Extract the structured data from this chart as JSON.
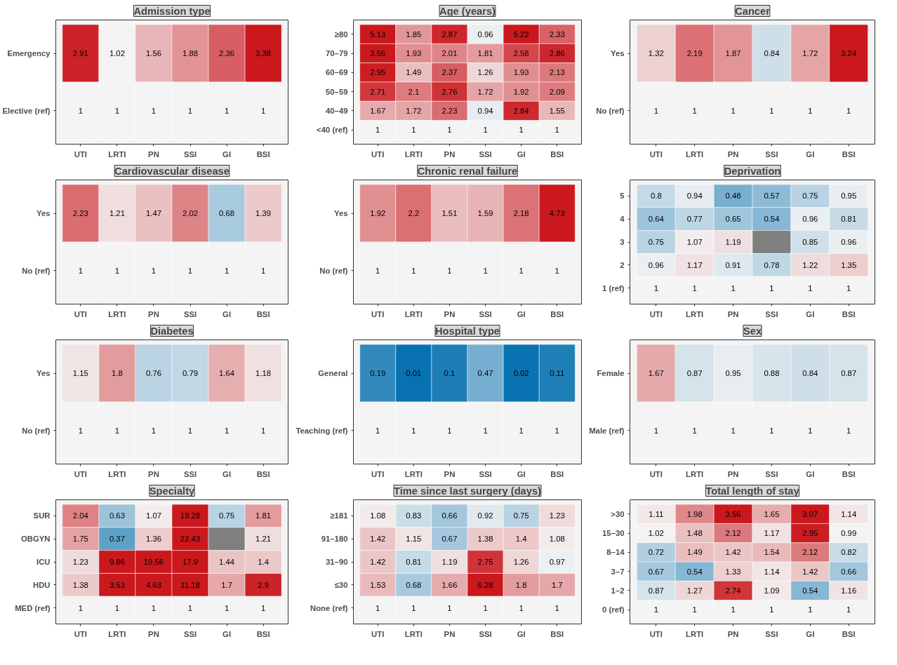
{
  "chart_data": [
    {
      "type": "heatmap",
      "title": "Admission type",
      "categories": [
        "UTI",
        "LRTI",
        "PN",
        "SSI",
        "GI",
        "BSI"
      ],
      "y_categories": [
        "Emergency",
        "Elective (ref)"
      ],
      "cells": [
        [
          2.91,
          1.02,
          1.56,
          1.88,
          2.36,
          3.38
        ],
        [
          1,
          1,
          1,
          1,
          1,
          1
        ]
      ],
      "data_labels": true,
      "grid": false
    },
    {
      "type": "heatmap",
      "title": "Age (years)",
      "categories": [
        "UTI",
        "LRTI",
        "PN",
        "SSI",
        "GI",
        "BSI"
      ],
      "y_categories": [
        "≥80",
        "70–79",
        "60–69",
        "50–59",
        "40–49",
        "<40 (ref)"
      ],
      "cells": [
        [
          5.13,
          1.85,
          2.87,
          0.96,
          5.22,
          2.33
        ],
        [
          3.56,
          1.93,
          2.01,
          1.81,
          2.58,
          2.86
        ],
        [
          2.95,
          1.49,
          2.37,
          1.26,
          1.93,
          2.13
        ],
        [
          2.71,
          2.1,
          2.76,
          1.72,
          1.92,
          2.09
        ],
        [
          1.67,
          1.72,
          2.23,
          0.94,
          2.84,
          1.55
        ],
        [
          1,
          1,
          1,
          1,
          1,
          1
        ]
      ],
      "data_labels": true,
      "grid": false
    },
    {
      "type": "heatmap",
      "title": "Cancer",
      "categories": [
        "UTI",
        "LRTI",
        "PN",
        "SSI",
        "GI",
        "BSI"
      ],
      "y_categories": [
        "Yes",
        "No (ref)"
      ],
      "cells": [
        [
          1.32,
          2.19,
          1.87,
          0.84,
          1.72,
          3.24
        ],
        [
          1,
          1,
          1,
          1,
          1,
          1
        ]
      ],
      "data_labels": true,
      "grid": false
    },
    {
      "type": "heatmap",
      "title": "Cardiovascular disease",
      "categories": [
        "UTI",
        "LRTI",
        "PN",
        "SSI",
        "GI",
        "BSI"
      ],
      "y_categories": [
        "Yes",
        "No (ref)"
      ],
      "cells": [
        [
          2.23,
          1.21,
          1.47,
          2.02,
          0.68,
          1.39
        ],
        [
          1,
          1,
          1,
          1,
          1,
          1
        ]
      ],
      "data_labels": true,
      "grid": false
    },
    {
      "type": "heatmap",
      "title": "Chronic renal failure",
      "categories": [
        "UTI",
        "LRTI",
        "PN",
        "SSI",
        "GI",
        "BSI"
      ],
      "y_categories": [
        "Yes",
        "No (ref)"
      ],
      "cells": [
        [
          1.92,
          2.2,
          1.51,
          1.59,
          2.18,
          4.73
        ],
        [
          1,
          1,
          1,
          1,
          1,
          1
        ]
      ],
      "data_labels": true,
      "grid": false
    },
    {
      "type": "heatmap",
      "title": "Deprivation",
      "categories": [
        "UTI",
        "LRTI",
        "PN",
        "SSI",
        "GI",
        "BSI"
      ],
      "y_categories": [
        "5",
        "4",
        "3",
        "2",
        "1 (ref)"
      ],
      "cells": [
        [
          0.8,
          0.94,
          0.48,
          0.57,
          0.75,
          0.95
        ],
        [
          0.64,
          0.77,
          0.65,
          0.54,
          0.96,
          0.81
        ],
        [
          0.75,
          1.07,
          1.19,
          null,
          0.85,
          0.96
        ],
        [
          0.96,
          1.17,
          0.91,
          0.78,
          1.22,
          1.35
        ],
        [
          1,
          1,
          1,
          1,
          1,
          1
        ]
      ],
      "data_labels": true,
      "grid": false
    },
    {
      "type": "heatmap",
      "title": "Diabetes",
      "categories": [
        "UTI",
        "LRTI",
        "PN",
        "SSI",
        "GI",
        "BSI"
      ],
      "y_categories": [
        "Yes",
        "No (ref)"
      ],
      "cells": [
        [
          1.15,
          1.8,
          0.76,
          0.79,
          1.64,
          1.18
        ],
        [
          1,
          1,
          1,
          1,
          1,
          1
        ]
      ],
      "data_labels": true,
      "grid": false
    },
    {
      "type": "heatmap",
      "title": "Hospital type",
      "categories": [
        "UTI",
        "LRTI",
        "PN",
        "SSI",
        "GI",
        "BSI"
      ],
      "y_categories": [
        "General",
        "Teaching (ref)"
      ],
      "cells": [
        [
          0.19,
          0.01,
          0.1,
          0.47,
          0.02,
          0.11
        ],
        [
          1,
          1,
          1,
          1,
          1,
          1
        ]
      ],
      "data_labels": true,
      "grid": false
    },
    {
      "type": "heatmap",
      "title": "Sex",
      "categories": [
        "UTI",
        "LRTI",
        "PN",
        "SSI",
        "GI",
        "BSI"
      ],
      "y_categories": [
        "Female",
        "Male (ref)"
      ],
      "cells": [
        [
          1.67,
          0.87,
          0.95,
          0.88,
          0.84,
          0.87
        ],
        [
          1,
          1,
          1,
          1,
          1,
          1
        ]
      ],
      "data_labels": true,
      "grid": false
    },
    {
      "type": "heatmap",
      "title": "Specialty",
      "categories": [
        "UTI",
        "LRTI",
        "PN",
        "SSI",
        "GI",
        "BSI"
      ],
      "y_categories": [
        "SUR",
        "OBGYN",
        "ICU",
        "HDU",
        "MED (ref)"
      ],
      "cells": [
        [
          2.04,
          0.63,
          1.07,
          19.28,
          0.75,
          1.81
        ],
        [
          1.75,
          0.37,
          1.36,
          22.43,
          null,
          1.21
        ],
        [
          1.23,
          9.86,
          19.56,
          17.9,
          1.44,
          1.4
        ],
        [
          1.38,
          3.53,
          4.63,
          11.18,
          1.7,
          2.9
        ],
        [
          1,
          1,
          1,
          1,
          1,
          1
        ]
      ],
      "data_labels": true,
      "grid": false
    },
    {
      "type": "heatmap",
      "title": "Time since last surgery (days)",
      "categories": [
        "UTI",
        "LRTI",
        "PN",
        "SSI",
        "GI",
        "BSI"
      ],
      "y_categories": [
        "≥181",
        "91–180",
        "31–90",
        "≤30",
        "None (ref)"
      ],
      "cells": [
        [
          1.08,
          0.83,
          0.66,
          0.92,
          0.75,
          1.23
        ],
        [
          1.42,
          1.15,
          0.67,
          1.38,
          1.4,
          1.08
        ],
        [
          1.42,
          0.81,
          1.19,
          2.75,
          1.26,
          0.97
        ],
        [
          1.53,
          0.68,
          1.66,
          6.28,
          1.8,
          1.7
        ],
        [
          1,
          1,
          1,
          1,
          1,
          1
        ]
      ],
      "data_labels": true,
      "grid": false
    },
    {
      "type": "heatmap",
      "title": "Total length of stay",
      "categories": [
        "UTI",
        "LRTI",
        "PN",
        "SSI",
        "GI",
        "BSI"
      ],
      "y_categories": [
        ">30",
        "15–30",
        "8–14",
        "3–7",
        "1–2",
        "0 (ref)"
      ],
      "cells": [
        [
          1.11,
          1.98,
          3.56,
          1.65,
          3.07,
          1.14
        ],
        [
          1.02,
          1.48,
          2.12,
          1.17,
          2.95,
          0.99
        ],
        [
          0.72,
          1.49,
          1.42,
          1.54,
          2.12,
          0.82
        ],
        [
          0.67,
          0.54,
          1.33,
          1.14,
          1.42,
          0.66
        ],
        [
          0.87,
          1.27,
          2.74,
          1.09,
          0.54,
          1.16
        ],
        [
          1,
          1,
          1,
          1,
          1,
          1
        ]
      ],
      "data_labels": true,
      "grid": false
    }
  ]
}
